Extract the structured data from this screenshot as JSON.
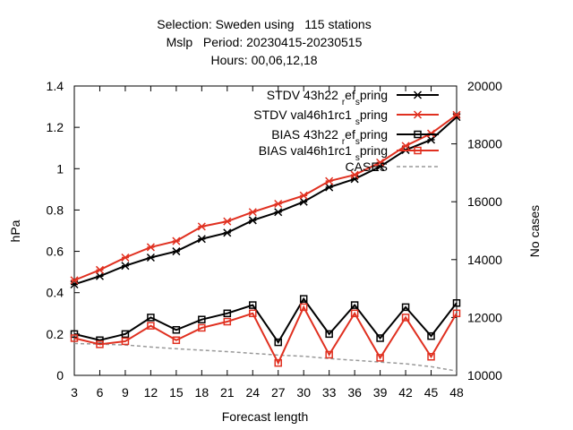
{
  "chart_data": {
    "type": "line",
    "title_lines": [
      "Selection: Sweden using   115 stations",
      "Mslp   Period: 20230415-20230515",
      "Hours: 00,06,12,18"
    ],
    "xlabel": "Forecast length",
    "ylabel": "hPa",
    "y2label": "No cases",
    "x": [
      3,
      6,
      9,
      12,
      15,
      18,
      21,
      24,
      27,
      30,
      33,
      36,
      39,
      42,
      45,
      48
    ],
    "ylim": [
      0,
      1.4
    ],
    "yticks": [
      "0",
      "0.2",
      "0.4",
      "0.6",
      "0.8",
      "1",
      "1.2",
      "1.4"
    ],
    "y2lim": [
      10000,
      20000
    ],
    "y2ticks": [
      "10000",
      "12000",
      "14000",
      "16000",
      "18000",
      "20000"
    ],
    "grid": false,
    "legend_position": "top-right",
    "series": [
      {
        "name": "STDV 43h22",
        "name_sub": "r",
        "name_mid": "ef",
        "name_sub2": "s",
        "name_tail": "pring",
        "axis": "y",
        "color": "#000000",
        "marker": "star",
        "values": [
          0.44,
          0.48,
          0.53,
          0.57,
          0.6,
          0.66,
          0.69,
          0.75,
          0.79,
          0.84,
          0.91,
          0.95,
          1.01,
          1.09,
          1.14,
          1.25
        ]
      },
      {
        "name": "STDV val46h1rc1",
        "name_sub": "",
        "name_mid": "",
        "name_sub2": "s",
        "name_tail": "pring",
        "axis": "y",
        "color": "#e03020",
        "marker": "star",
        "values": [
          0.46,
          0.51,
          0.57,
          0.62,
          0.65,
          0.72,
          0.745,
          0.79,
          0.83,
          0.87,
          0.94,
          0.97,
          1.03,
          1.11,
          1.17,
          1.26
        ]
      },
      {
        "name": "BIAS 43h22",
        "name_sub": "r",
        "name_mid": "ef",
        "name_sub2": "s",
        "name_tail": "pring",
        "axis": "y",
        "color": "#000000",
        "marker": "square",
        "values": [
          0.2,
          0.17,
          0.2,
          0.28,
          0.22,
          0.27,
          0.3,
          0.34,
          0.16,
          0.37,
          0.2,
          0.34,
          0.18,
          0.33,
          0.19,
          0.35
        ]
      },
      {
        "name": "BIAS val46h1rc1",
        "name_sub": "",
        "name_mid": "",
        "name_sub2": "s",
        "name_tail": "pring",
        "axis": "y",
        "color": "#e03020",
        "marker": "square",
        "values": [
          0.18,
          0.15,
          0.165,
          0.24,
          0.17,
          0.23,
          0.26,
          0.3,
          0.06,
          0.33,
          0.1,
          0.3,
          0.085,
          0.28,
          0.09,
          0.3
        ]
      },
      {
        "name": "CASES",
        "name_sub": "",
        "name_mid": "",
        "name_sub2": "",
        "name_tail": "",
        "axis": "y2",
        "color": "#999999",
        "marker": "none",
        "dashed": true,
        "values": [
          11100,
          11080,
          11050,
          10980,
          10920,
          10870,
          10820,
          10760,
          10700,
          10660,
          10580,
          10520,
          10460,
          10400,
          10300,
          10150
        ]
      }
    ]
  }
}
